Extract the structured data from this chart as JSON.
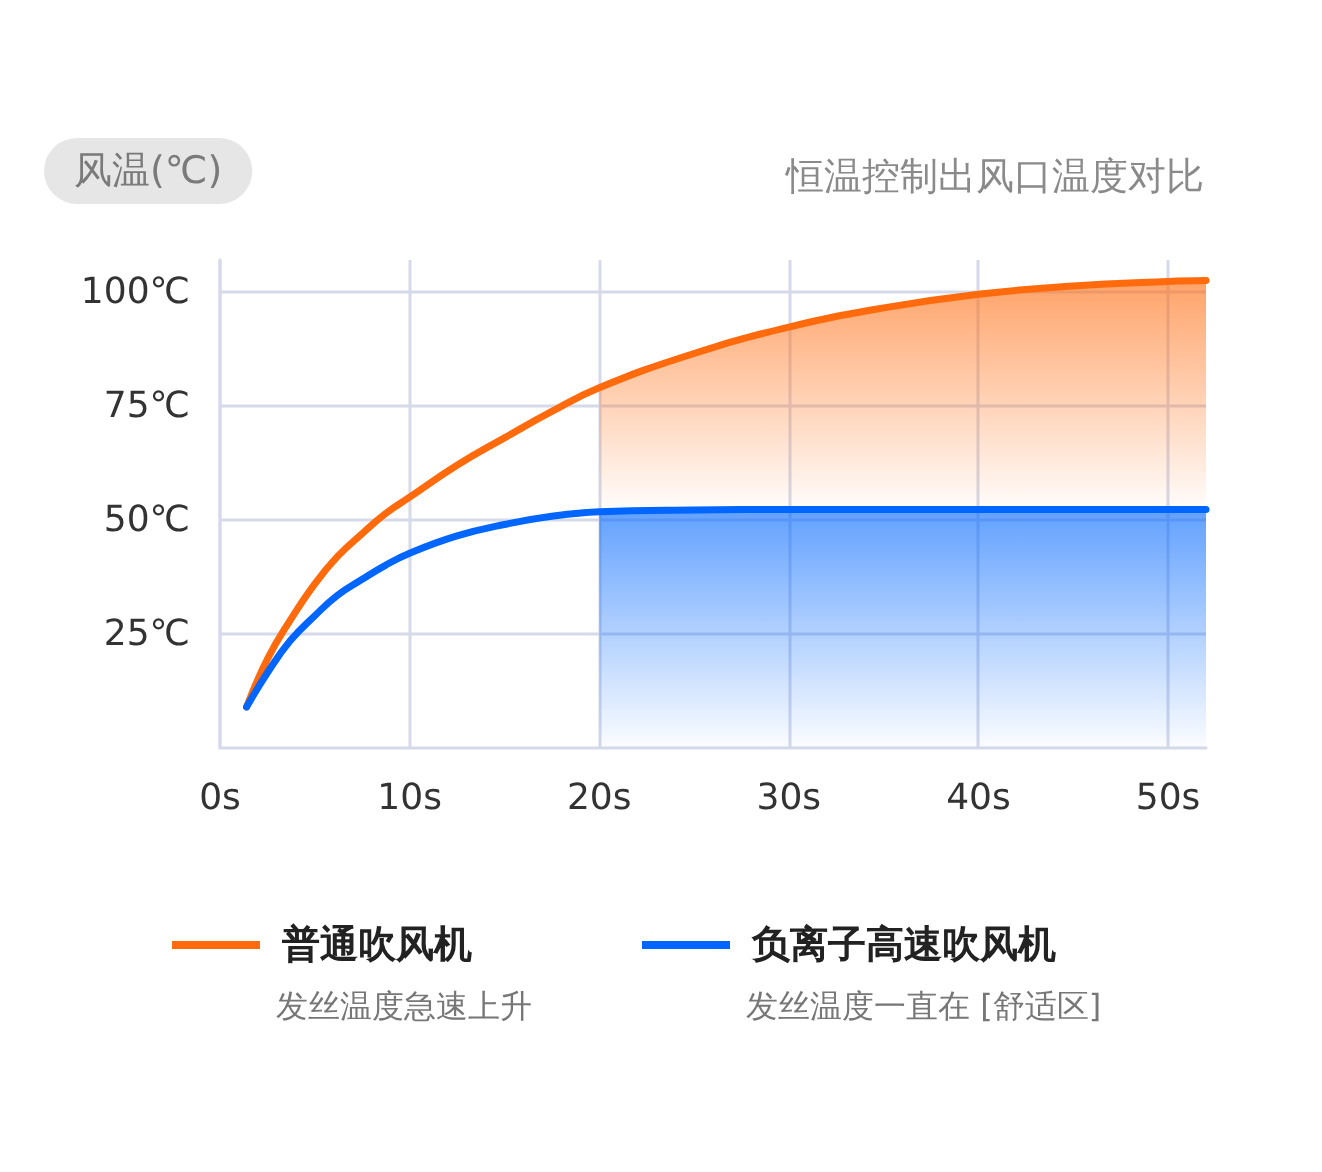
{
  "chart_data": {
    "type": "line",
    "title": "恒温控制出风口温度对比",
    "ylabel": "风温(℃)",
    "series": [
      {
        "name": "普通吹风机",
        "color": "#ff6a0c",
        "type": "line",
        "x": [
          1.4,
          2.5,
          3.7,
          5,
          6.2,
          7.5,
          8.7,
          10,
          12.5,
          15,
          17.5,
          20,
          25,
          30,
          35,
          40,
          45,
          50,
          52
        ],
        "values": [
          9,
          19.5,
          28,
          36,
          42,
          47,
          51.3,
          55,
          62,
          68,
          73.8,
          79,
          86.5,
          92.3,
          96.5,
          99.5,
          101.3,
          102.3,
          102.5
        ]
      },
      {
        "name": "负离子高速吹风机",
        "color": "#0066ff",
        "type": "line",
        "x": [
          1.4,
          2.5,
          3.7,
          5,
          6.2,
          7.5,
          8.7,
          10,
          12.5,
          15,
          17.5,
          20,
          25,
          30,
          40,
          52
        ],
        "values": [
          9,
          16.5,
          23.5,
          29,
          33.5,
          37,
          40,
          42.7,
          46.5,
          49,
          50.8,
          51.8,
          52.2,
          52.3,
          52.3,
          52.3
        ]
      },
      {
        "color": "#0066ff",
        "type": "area",
        "x": [
          20,
          25,
          30,
          35,
          40,
          45,
          50,
          52
        ],
        "values": [
          51.8,
          52.2,
          52.3,
          52.3,
          52.3,
          52.3,
          52.3,
          52.3
        ]
      },
      {
        "color": "#ff6a0c",
        "type": "area",
        "x": [
          20,
          25,
          30,
          35,
          40,
          45,
          50,
          52
        ],
        "values": [
          79,
          86.5,
          92.3,
          96.5,
          99.5,
          101.3,
          102.3,
          102.5
        ]
      }
    ],
    "xlim": [
      0,
      52
    ],
    "xticks": [
      {
        "value": 0,
        "label": "0s"
      },
      {
        "value": 10,
        "label": "10s"
      },
      {
        "value": 20,
        "label": "20s"
      },
      {
        "value": 30,
        "label": "30s"
      },
      {
        "value": 40,
        "label": "40s"
      },
      {
        "value": 50,
        "label": "50s"
      }
    ],
    "ylim": [
      0,
      107
    ],
    "yticks": [
      {
        "value": 25,
        "label": "25℃"
      },
      {
        "value": 50,
        "label": "50℃"
      },
      {
        "value": 75,
        "label": "75℃"
      },
      {
        "value": 100,
        "label": "100℃"
      }
    ],
    "grid": true,
    "legend": "bottom",
    "marker": "none",
    "line_style": "solid",
    "annotations": [
      "发丝温度急速上升",
      "发丝温度一直在 [舒适区]"
    ]
  }
}
